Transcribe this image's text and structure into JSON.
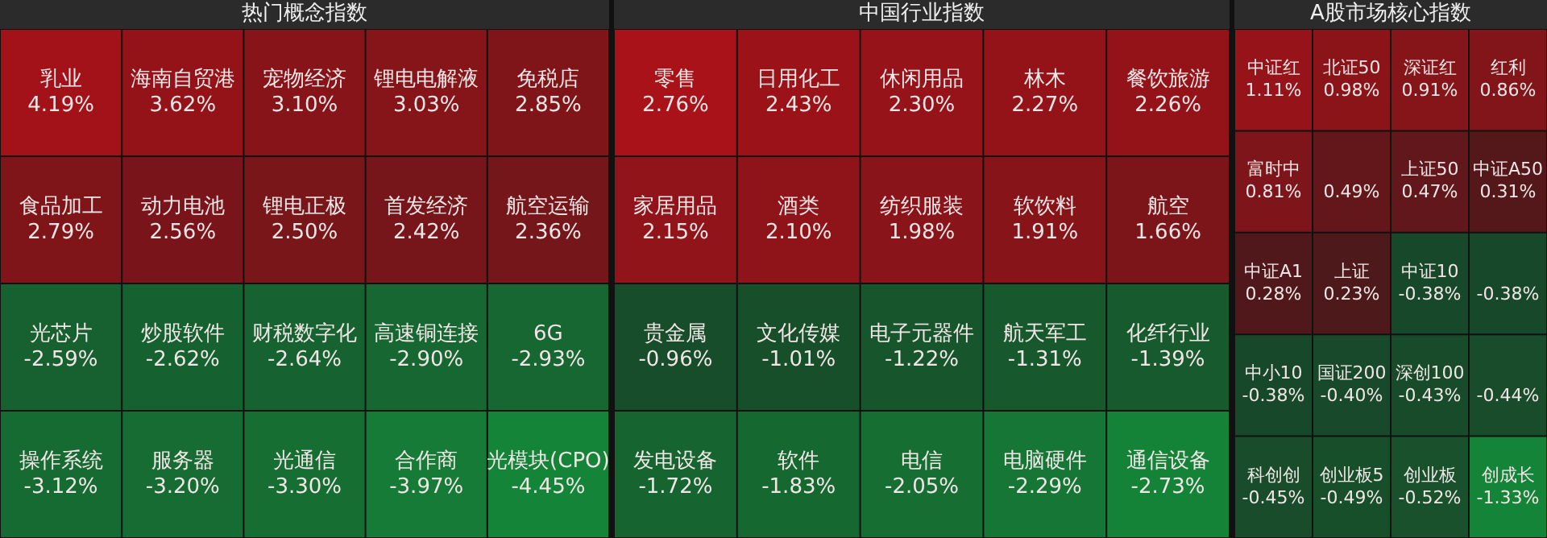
{
  "chart_data": [
    {
      "type": "other",
      "title": "热门概念指数",
      "categories": [
        "乳业",
        "海南自贸港",
        "宠物经济",
        "锂电电解液",
        "免税店",
        "食品加工",
        "动力电池",
        "锂电正极",
        "首发经济",
        "航空运输",
        "光芯片",
        "炒股软件",
        "财税数字化",
        "高速铜连接",
        "6G",
        "操作系统",
        "服务器",
        "光通信",
        "合作商",
        "光模块(CPO)"
      ],
      "values": [
        4.19,
        3.62,
        3.1,
        3.03,
        2.85,
        2.79,
        2.56,
        2.5,
        2.42,
        2.36,
        -2.59,
        -2.62,
        -2.64,
        -2.9,
        -2.93,
        -3.12,
        -3.2,
        -3.3,
        -3.97,
        -4.45
      ],
      "value_labels": [
        "4.19%",
        "3.62%",
        "3.10%",
        "3.03%",
        "2.85%",
        "2.79%",
        "2.56%",
        "2.50%",
        "2.42%",
        "2.36%",
        "-2.59%",
        "-2.62%",
        "-2.64%",
        "-2.90%",
        "-2.93%",
        "-3.12%",
        "-3.20%",
        "-3.30%",
        "-3.97%",
        "-4.45%"
      ]
    },
    {
      "type": "other",
      "title": "中国行业指数",
      "categories": [
        "零售",
        "日用化工",
        "休闲用品",
        "林木",
        "餐饮旅游",
        "家居用品",
        "酒类",
        "纺织服装",
        "软饮料",
        "航空",
        "贵金属",
        "文化传媒",
        "电子元器件",
        "航天军工",
        "化纤行业",
        "发电设备",
        "软件",
        "电信",
        "电脑硬件",
        "通信设备"
      ],
      "values": [
        2.76,
        2.43,
        2.3,
        2.27,
        2.26,
        2.15,
        2.1,
        1.98,
        1.91,
        1.66,
        -0.96,
        -1.01,
        -1.22,
        -1.31,
        -1.39,
        -1.72,
        -1.83,
        -2.05,
        -2.29,
        -2.73
      ],
      "value_labels": [
        "2.76%",
        "2.43%",
        "2.30%",
        "2.27%",
        "2.26%",
        "2.15%",
        "2.10%",
        "1.98%",
        "1.91%",
        "1.66%",
        "-0.96%",
        "-1.01%",
        "-1.22%",
        "-1.31%",
        "-1.39%",
        "-1.72%",
        "-1.83%",
        "-2.05%",
        "-2.29%",
        "-2.73%"
      ]
    },
    {
      "type": "other",
      "title": "A股市场核心指数",
      "categories": [
        "中证红",
        "北证50",
        "深证红",
        "红利",
        "富时中",
        null,
        "上证50",
        "中证A50",
        "中证A1",
        "上证",
        "中证10",
        null,
        "中小10",
        "国证200",
        "深创100",
        null,
        "科创创",
        "创业板5",
        "创业板",
        "创成长"
      ],
      "values": [
        1.11,
        0.98,
        0.91,
        0.86,
        0.81,
        0.49,
        0.47,
        0.31,
        0.28,
        0.23,
        -0.38,
        -0.38,
        -0.38,
        -0.4,
        -0.43,
        -0.44,
        -0.45,
        -0.49,
        -0.52,
        -1.33
      ],
      "value_labels": [
        "1.11%",
        "0.98%",
        "0.91%",
        "0.86%",
        "0.81%",
        "0.49%",
        "0.47%",
        "0.31%",
        "0.28%",
        "0.23%",
        "-0.38%",
        "-0.38%",
        "-0.38%",
        "-0.40%",
        "-0.43%",
        "-0.44%",
        "-0.45%",
        "-0.49%",
        "-0.52%",
        "-1.33%"
      ]
    }
  ]
}
